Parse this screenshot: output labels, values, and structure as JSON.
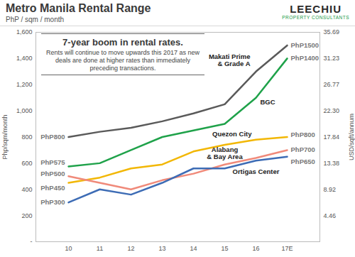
{
  "chart_data": {
    "type": "line",
    "title": "Metro Manila Rental Range",
    "subtitle": "PhP / sqm / month",
    "logo": [
      "LEECHIU",
      "PROPERTY CONSULTANTS"
    ],
    "annotation": {
      "title": "7-year boom in rental rates.",
      "text": "Rents will continue to move upwards this 2017 as new deals are done at higher rates than immediately preceding transactions."
    },
    "categories": [
      "10",
      "11",
      "12",
      "13",
      "14",
      "15",
      "16",
      "17E"
    ],
    "y_label": "Php/sqm/month",
    "y2_label": "USD/sqft/annum",
    "ylim": [
      0,
      1600
    ],
    "yticks": [
      {
        "value": 0,
        "label": "-"
      },
      200,
      400,
      600,
      800,
      {
        "value": 1000,
        "label": "1,000"
      },
      {
        "value": 1200,
        "label": "1,200"
      },
      {
        "value": 1400,
        "label": "1,400"
      },
      {
        "value": 1600,
        "label": "1,600"
      }
    ],
    "y2lim": [
      0,
      35.69
    ],
    "y2ticks": [
      4.46,
      8.92,
      13.38,
      17.84,
      {
        "value": 22.3,
        "label": "22.30"
      },
      26.77,
      31.23,
      35.69
    ],
    "grid": false,
    "series": [
      {
        "name": "Makati Prime\n& Grade A",
        "color": "#5a5a5a",
        "values": [
          800,
          840,
          870,
          920,
          980,
          1050,
          1300,
          1500
        ],
        "value_labels": [
          "PhP800",
          null,
          null,
          null,
          null,
          null,
          null,
          "PhP1500"
        ]
      },
      {
        "name": "BGC",
        "color": "#1fa24a",
        "values": [
          575,
          600,
          700,
          800,
          850,
          900,
          1100,
          1400
        ],
        "value_labels": [
          "PhP575",
          null,
          null,
          null,
          null,
          null,
          null,
          "PhP1400"
        ]
      },
      {
        "name": "Quezon City",
        "color": "#f2b705",
        "values": [
          450,
          490,
          560,
          590,
          690,
          740,
          780,
          800
        ],
        "value_labels": [
          "PhP450",
          null,
          null,
          null,
          null,
          null,
          null,
          "PhP800"
        ]
      },
      {
        "name": "Alabang\n& Bay Area",
        "color": "#f08a7a",
        "values": [
          500,
          450,
          400,
          470,
          520,
          590,
          640,
          700
        ],
        "value_labels": [
          "PhP500",
          null,
          null,
          null,
          null,
          null,
          null,
          "PhP700"
        ]
      },
      {
        "name": "Ortigas Center",
        "color": "#3d6cb5",
        "values": [
          300,
          400,
          360,
          450,
          560,
          560,
          620,
          650
        ],
        "value_labels": [
          "PhP300",
          null,
          null,
          null,
          null,
          null,
          null,
          "PhP650"
        ]
      }
    ]
  }
}
